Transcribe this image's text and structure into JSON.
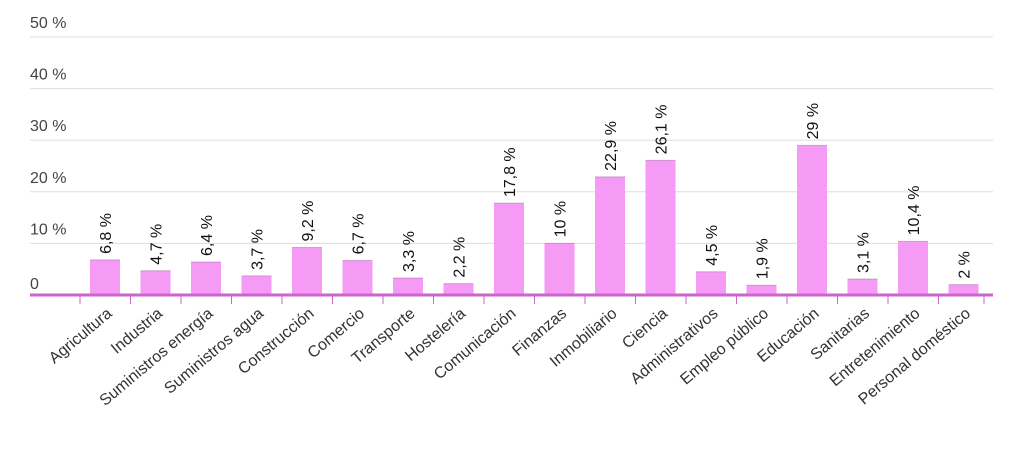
{
  "chart_data": {
    "type": "bar",
    "categories": [
      "Agricultura",
      "Industria",
      "Suministros energía",
      "Suministros agua",
      "Construcción",
      "Comercio",
      "Transporte",
      "Hostelería",
      "Comunicación",
      "Finanzas",
      "Inmobiliario",
      "Ciencia",
      "Administrativos",
      "Empleo público",
      "Educación",
      "Sanitarias",
      "Entretenimiento",
      "Personal doméstico"
    ],
    "values": [
      6.8,
      4.7,
      6.4,
      3.7,
      9.2,
      6.7,
      3.3,
      2.2,
      17.8,
      10,
      22.9,
      26.1,
      4.5,
      1.9,
      29,
      3.1,
      10.4,
      2
    ],
    "value_labels": [
      "6,8 %",
      "4,7 %",
      "6,4 %",
      "3,7 %",
      "9,2 %",
      "6,7 %",
      "3,3 %",
      "2,2 %",
      "17,8 %",
      "10 %",
      "22,9 %",
      "26,1 %",
      "4,5 %",
      "1,9 %",
      "29 %",
      "3,1 %",
      "10,4 %",
      "2 %"
    ],
    "y_ticks": [
      0,
      10,
      20,
      30,
      40,
      50
    ],
    "y_tick_labels": [
      "0",
      "10 %",
      "20 %",
      "30 %",
      "40 %",
      "50 %"
    ],
    "ylim": [
      0,
      50
    ],
    "grid": true,
    "legend": "none",
    "bar_color": "#f59af5",
    "baseline_color": "#cc66cc"
  }
}
